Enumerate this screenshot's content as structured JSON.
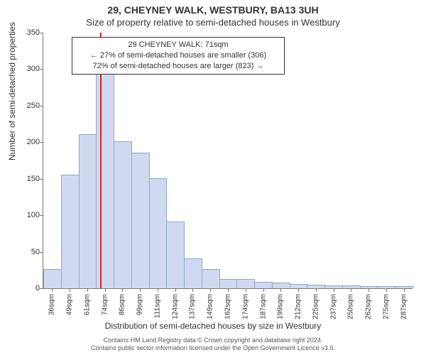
{
  "chart": {
    "type": "histogram",
    "title_main": "29, CHEYNEY WALK, WESTBURY, BA13 3UH",
    "title_sub": "Size of property relative to semi-detached houses in Westbury",
    "ylabel": "Number of semi-detached properties",
    "xlabel": "Distribution of semi-detached houses by size in Westbury",
    "ylim": [
      0,
      350
    ],
    "ytick_step": 50,
    "bar_fill": "#cfdaf0",
    "bar_stroke": "#8ea6cf",
    "background": "#ffffff",
    "axis_color": "#777777",
    "marker_color": "#e02020",
    "marker_x_value": 71,
    "x_categories": [
      "36sqm",
      "49sqm",
      "61sqm",
      "74sqm",
      "86sqm",
      "99sqm",
      "111sqm",
      "124sqm",
      "137sqm",
      "149sqm",
      "162sqm",
      "174sqm",
      "187sqm",
      "199sqm",
      "212sqm",
      "225sqm",
      "237sqm",
      "250sqm",
      "262sqm",
      "275sqm",
      "287sqm"
    ],
    "values": [
      25,
      155,
      210,
      295,
      200,
      185,
      150,
      90,
      40,
      25,
      12,
      12,
      8,
      7,
      5,
      4,
      3,
      3,
      2,
      2,
      2
    ],
    "annotation": {
      "line1": "29 CHEYNEY WALK: 71sqm",
      "line2": "← 27% of semi-detached houses are smaller (306)",
      "line3": "72% of semi-detached houses are larger (823) →"
    },
    "title_fontsize": 14,
    "subtitle_fontsize": 13,
    "label_fontsize": 12,
    "tick_fontsize": 11
  },
  "footer": {
    "line1": "Contains HM Land Registry data © Crown copyright and database right 2024.",
    "line2": "Contains public sector information licensed under the Open Government Licence v3.0."
  }
}
